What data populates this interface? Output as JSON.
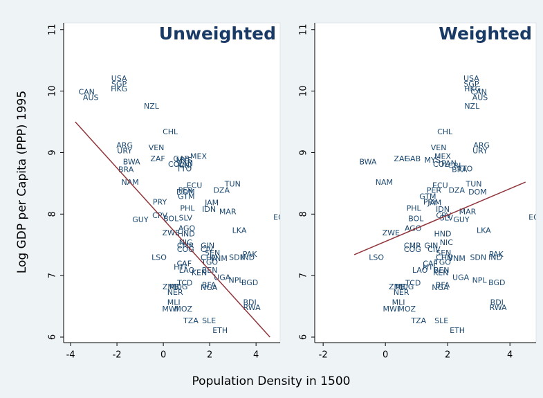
{
  "xlabel": "Population Density in 1500",
  "ylabel": "Log GDP per Capita (PPP) 1995",
  "chart_data": [
    {
      "type": "scatter",
      "title": "Unweighted",
      "color": "#1a476f",
      "xlim": [
        -4.3,
        5.04
      ],
      "ylim": [
        5.91,
        11.11
      ],
      "xticks": [
        -4,
        -2,
        0,
        2,
        4
      ],
      "yticks": [
        6,
        7,
        8,
        9,
        10,
        11
      ],
      "labels": [
        "USA",
        "SGP",
        "HKG",
        "CAN",
        "AUS",
        "NZL",
        "CHL",
        "ARG",
        "URY",
        "VEN",
        "MEX",
        "ZAF",
        "GAB",
        "MYS",
        "PAN",
        "COL",
        "CRI",
        "TTO",
        "BRA",
        "BWA",
        "NAM",
        "ECU",
        "TUN",
        "PER",
        "DOM",
        "DZA",
        "GTM",
        "PRY",
        "JAM",
        "PHL",
        "IDN",
        "MAR",
        "EGY",
        "CPV",
        "BOL",
        "SLV",
        "GUY",
        "AGO",
        "ZWE",
        "HND",
        "LKA",
        "NIC",
        "CMR",
        "GIN",
        "COG",
        "CIV",
        "SEN",
        "LSO",
        "PAK",
        "IND",
        "SDN",
        "VNM",
        "CHN",
        "TGO",
        "CAF",
        "HTI",
        "BEN",
        "LAO",
        "KEN",
        "UGA",
        "NPL",
        "BGD",
        "TCD",
        "ZMB",
        "MDG",
        "BFA",
        "NGA",
        "NER",
        "MLI",
        "BDI",
        "MWI",
        "MOZ",
        "RWA",
        "TZA",
        "SLE",
        "ETH"
      ],
      "x": [
        -1.91,
        -1.91,
        -1.91,
        -3.31,
        -3.13,
        -0.51,
        0.3,
        -1.67,
        -1.67,
        -0.3,
        1.52,
        -0.24,
        0.78,
        0.9,
        0.96,
        0.54,
        0.96,
        0.9,
        -1.61,
        -1.37,
        -1.43,
        1.34,
        2.99,
        0.96,
        0.96,
        2.51,
        0.99,
        -0.15,
        2.09,
        1.04,
        1.97,
        2.78,
        5.07,
        -0.15,
        0.33,
        0.96,
        -0.99,
        1.01,
        0.33,
        0.99,
        3.28,
        0.96,
        0.96,
        1.91,
        0.96,
        1.88,
        2.12,
        -0.18,
        3.73,
        3.64,
        3.19,
        2.39,
        1.97,
        2.0,
        0.9,
        0.72,
        2.0,
        1.01,
        1.55,
        2.54,
        3.13,
        3.73,
        0.93,
        0.33,
        0.66,
        1.97,
        1.97,
        0.51,
        0.45,
        3.73,
        0.3,
        0.87,
        3.82,
        1.19,
        1.97,
        2.45
      ],
      "y": [
        10.2,
        10.11,
        10.03,
        9.98,
        9.89,
        9.75,
        9.33,
        9.11,
        9.02,
        9.07,
        8.93,
        8.89,
        8.89,
        8.87,
        8.82,
        8.8,
        8.78,
        8.73,
        8.72,
        8.84,
        8.51,
        8.46,
        8.48,
        8.38,
        8.35,
        8.38,
        8.28,
        8.19,
        8.18,
        8.09,
        8.07,
        8.03,
        7.94,
        7.97,
        7.92,
        7.93,
        7.9,
        7.76,
        7.69,
        7.67,
        7.73,
        7.53,
        7.48,
        7.48,
        7.42,
        7.42,
        7.36,
        7.29,
        7.34,
        7.29,
        7.29,
        7.27,
        7.29,
        7.21,
        7.19,
        7.13,
        7.08,
        7.08,
        7.04,
        6.96,
        6.92,
        6.88,
        6.87,
        6.81,
        6.81,
        6.84,
        6.8,
        6.72,
        6.56,
        6.56,
        6.45,
        6.45,
        6.47,
        6.26,
        6.26,
        6.1
      ],
      "fit": {
        "color": "#90353b",
        "x": [
          -3.8,
          4.6
        ],
        "y": [
          9.5,
          6.0
        ]
      }
    },
    {
      "type": "scatter",
      "title": "Weighted",
      "color": "#1a476f",
      "xlim": [
        -2.27,
        4.84
      ],
      "ylim": [
        5.91,
        11.11
      ],
      "xticks": [
        -2,
        0,
        2,
        4
      ],
      "yticks": [
        6,
        7,
        8,
        9,
        10,
        11
      ],
      "labels": [
        "USA",
        "SGP",
        "HKG",
        "CAN",
        "AUS",
        "NZL",
        "CHL",
        "ARG",
        "URY",
        "VEN",
        "MEX",
        "ZAF",
        "GAB",
        "MYS",
        "PAN",
        "COL",
        "CRI",
        "TTO",
        "BRA",
        "BWA",
        "NAM",
        "ECU",
        "TUN",
        "PER",
        "DOM",
        "DZA",
        "GTM",
        "PRY",
        "JAM",
        "PHL",
        "IDN",
        "MAR",
        "EGY",
        "CPV",
        "BOL",
        "SLV",
        "GUY",
        "AGO",
        "ZWE",
        "HND",
        "LKA",
        "NIC",
        "CMR",
        "GIN",
        "COG",
        "CIV",
        "SEN",
        "LSO",
        "PAK",
        "IND",
        "SDN",
        "VNM",
        "CHN",
        "TGO",
        "CAF",
        "HTI",
        "BEN",
        "LAO",
        "KEN",
        "UGA",
        "NPL",
        "BGD",
        "TCD",
        "ZMB",
        "MDG",
        "BFA",
        "NGA",
        "NER",
        "MLI",
        "BDI",
        "MWI",
        "MOZ",
        "RWA",
        "TZA",
        "SLE",
        "ETH"
      ],
      "x": [
        2.76,
        2.76,
        2.8,
        3.0,
        3.04,
        2.78,
        1.91,
        3.09,
        3.04,
        1.71,
        1.84,
        0.51,
        0.87,
        1.51,
        2.04,
        1.78,
        2.22,
        2.56,
        2.38,
        -0.56,
        -0.04,
        1.76,
        2.84,
        1.56,
        2.96,
        2.29,
        1.36,
        1.44,
        1.58,
        0.91,
        1.84,
        2.64,
        4.84,
        1.87,
        0.98,
        1.96,
        2.44,
        0.89,
        0.18,
        1.84,
        3.16,
        1.96,
        0.87,
        1.47,
        0.87,
        1.56,
        1.87,
        -0.29,
        3.56,
        3.53,
        2.98,
        2.29,
        1.89,
        1.84,
        1.44,
        1.4,
        1.8,
        1.11,
        1.78,
        2.42,
        3.02,
        3.58,
        0.89,
        0.38,
        0.62,
        1.84,
        1.76,
        0.51,
        0.42,
        3.58,
        0.18,
        0.69,
        3.62,
        1.07,
        1.8,
        2.31
      ],
      "y": [
        10.2,
        10.11,
        10.03,
        9.98,
        9.89,
        9.75,
        9.33,
        9.11,
        9.02,
        9.07,
        8.93,
        8.89,
        8.89,
        8.87,
        8.82,
        8.8,
        8.78,
        8.73,
        8.72,
        8.84,
        8.51,
        8.46,
        8.48,
        8.38,
        8.35,
        8.38,
        8.28,
        8.19,
        8.18,
        8.09,
        8.07,
        8.03,
        7.94,
        7.97,
        7.92,
        7.93,
        7.9,
        7.76,
        7.69,
        7.67,
        7.73,
        7.53,
        7.48,
        7.48,
        7.42,
        7.42,
        7.36,
        7.29,
        7.34,
        7.29,
        7.29,
        7.27,
        7.29,
        7.21,
        7.19,
        7.13,
        7.08,
        7.08,
        7.04,
        6.96,
        6.92,
        6.88,
        6.87,
        6.81,
        6.81,
        6.84,
        6.8,
        6.72,
        6.56,
        6.56,
        6.45,
        6.45,
        6.47,
        6.26,
        6.26,
        6.1
      ],
      "fit": {
        "color": "#90353b",
        "x": [
          -1.0,
          4.5
        ],
        "y": [
          7.34,
          8.52
        ]
      }
    }
  ]
}
